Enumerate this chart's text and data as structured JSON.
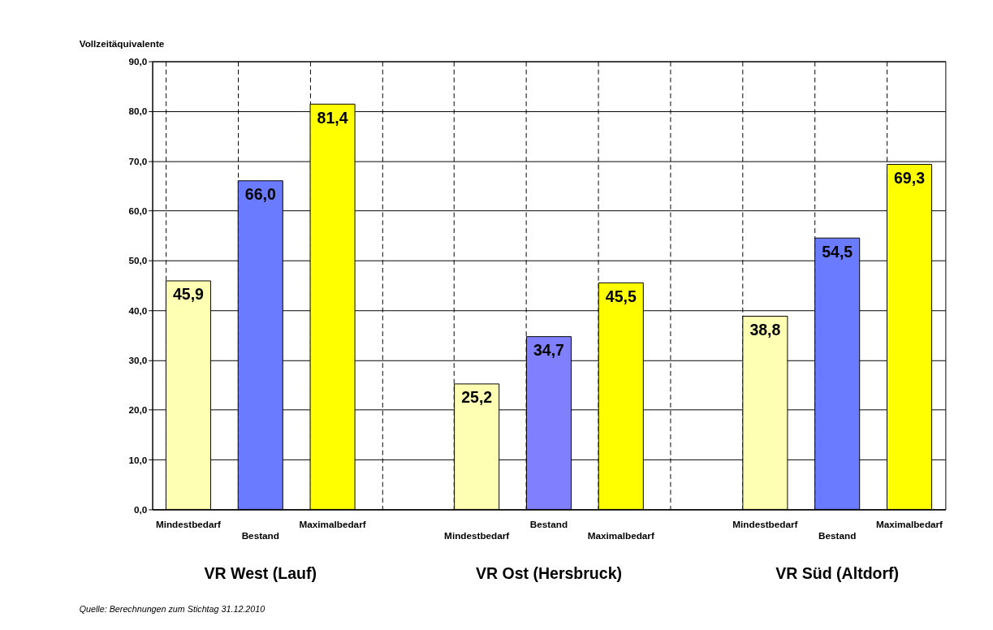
{
  "chart_data": {
    "type": "bar",
    "ylabel": "Vollzeitäquivalente",
    "categories": [
      "Mindestbedarf",
      "Bestand",
      "Maximalbedarf",
      null,
      "Mindestbedarf",
      "Bestand",
      "Maximalbedarf",
      null,
      "Mindestbedarf",
      "Bestand",
      "Maximalbedarf"
    ],
    "values": [
      45.9,
      66.0,
      81.4,
      null,
      25.2,
      34.7,
      45.5,
      null,
      38.8,
      54.5,
      69.3
    ],
    "value_labels": [
      "45,9",
      "66,0",
      "81,4",
      null,
      "25,2",
      "34,7",
      "45,5",
      null,
      "38,8",
      "54,5",
      "69,3"
    ],
    "colors": [
      "#ffffb3",
      "#6b7bff",
      "#ffff00",
      null,
      "#ffffb3",
      "#8080ff",
      "#ffff00",
      null,
      "#ffffb3",
      "#6b7bff",
      "#ffff00"
    ],
    "ylim": [
      0,
      90
    ],
    "yticks": [
      {
        "value": 0,
        "label": "0,0"
      },
      {
        "value": 10,
        "label": "10,0"
      },
      {
        "value": 20,
        "label": "20,0"
      },
      {
        "value": 30,
        "label": "30,0"
      },
      {
        "value": 40,
        "label": "40,0"
      },
      {
        "value": 50,
        "label": "50,0"
      },
      {
        "value": 60,
        "label": "60,0"
      },
      {
        "value": 70,
        "label": "70,0"
      },
      {
        "value": 80,
        "label": "80,0"
      },
      {
        "value": 90,
        "label": "90,0"
      }
    ],
    "grid": true,
    "annotations": [
      "VR West (Lauf)",
      "VR Ost (Hersbruck)",
      "VR Süd (Altdorf)",
      "Quelle: Berechnungen zum Stichtag 31.12.2010"
    ]
  }
}
